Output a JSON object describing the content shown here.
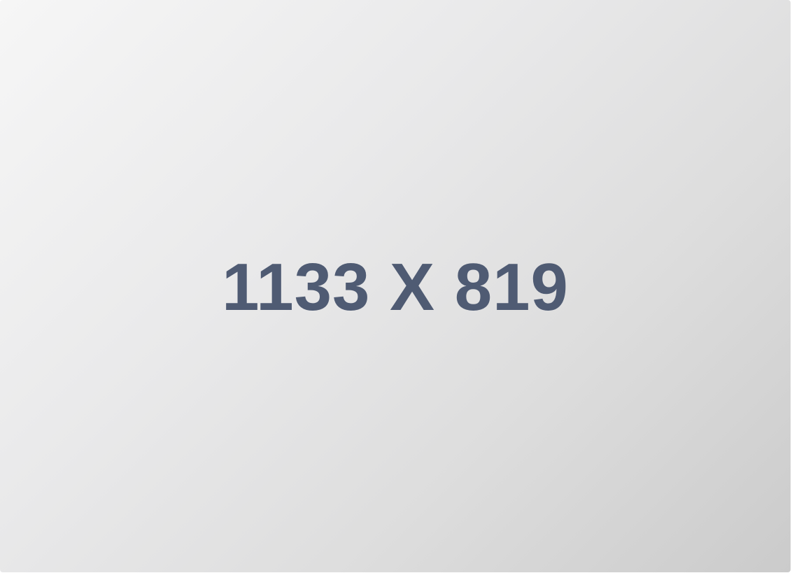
{
  "placeholder": {
    "label": "1133 X 819",
    "text_color": "#4f5b73",
    "background_gradient": [
      "#f6f6f6",
      "#e9e9ea",
      "#dddddd",
      "#cbcbcb"
    ]
  }
}
